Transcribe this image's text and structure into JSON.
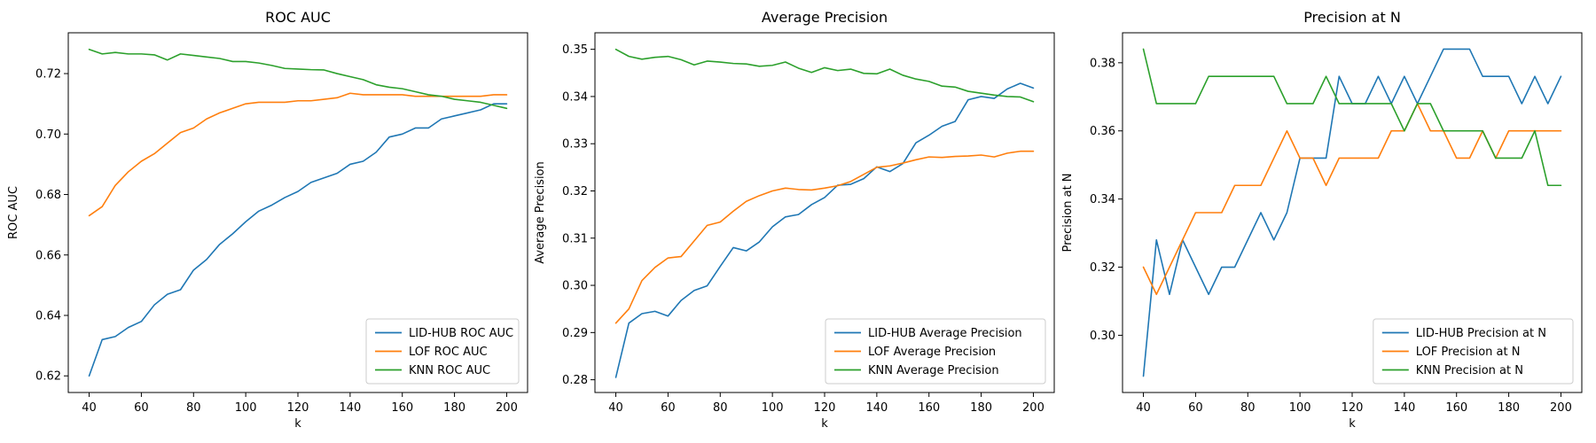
{
  "chart_data": [
    {
      "type": "line",
      "title": "ROC AUC",
      "xlabel": "k",
      "ylabel": "ROC AUC",
      "xlim": [
        32,
        208
      ],
      "ylim": [
        0.6145,
        0.7335
      ],
      "xticks": [
        40,
        60,
        80,
        100,
        120,
        140,
        160,
        180,
        200
      ],
      "yticks": [
        0.62,
        0.64,
        0.66,
        0.68,
        0.7,
        0.72
      ],
      "ytick_decimals": 2,
      "legend_position": "lower right",
      "grid": false,
      "x": [
        40,
        45,
        50,
        55,
        60,
        65,
        70,
        75,
        80,
        85,
        90,
        95,
        100,
        105,
        110,
        115,
        120,
        125,
        130,
        135,
        140,
        145,
        150,
        155,
        160,
        165,
        170,
        175,
        180,
        185,
        190,
        195,
        200
      ],
      "series": [
        {
          "name": "LID-HUB ROC AUC",
          "color": "#1f77b4",
          "values": [
            0.62,
            0.632,
            0.633,
            0.636,
            0.638,
            0.6435,
            0.647,
            0.6485,
            0.655,
            0.6585,
            0.6635,
            0.667,
            0.671,
            0.6745,
            0.6765,
            0.679,
            0.681,
            0.684,
            0.6855,
            0.687,
            0.69,
            0.691,
            0.694,
            0.699,
            0.7,
            0.702,
            0.702,
            0.705,
            0.706,
            0.707,
            0.708,
            0.71,
            0.71
          ]
        },
        {
          "name": "LOF ROC AUC",
          "color": "#ff7f0e",
          "values": [
            0.673,
            0.676,
            0.683,
            0.6875,
            0.691,
            0.6935,
            0.697,
            0.7005,
            0.702,
            0.705,
            0.707,
            0.7085,
            0.71,
            0.7105,
            0.7105,
            0.7105,
            0.711,
            0.711,
            0.7115,
            0.712,
            0.7135,
            0.713,
            0.713,
            0.713,
            0.713,
            0.7125,
            0.7125,
            0.7125,
            0.7125,
            0.7125,
            0.7125,
            0.713,
            0.713
          ]
        },
        {
          "name": "KNN ROC AUC",
          "color": "#2ca02c",
          "values": [
            0.728,
            0.7265,
            0.727,
            0.7265,
            0.7265,
            0.7262,
            0.7245,
            0.7265,
            0.726,
            0.7255,
            0.725,
            0.724,
            0.724,
            0.7235,
            0.7227,
            0.7217,
            0.7215,
            0.7213,
            0.7212,
            0.72,
            0.719,
            0.718,
            0.7163,
            0.7155,
            0.715,
            0.714,
            0.713,
            0.7125,
            0.7115,
            0.711,
            0.7105,
            0.7095,
            0.7085
          ]
        }
      ]
    },
    {
      "type": "line",
      "title": "Average Precision",
      "xlabel": "k",
      "ylabel": "Average Precision",
      "xlim": [
        32,
        208
      ],
      "ylim": [
        0.2773,
        0.3535
      ],
      "xticks": [
        40,
        60,
        80,
        100,
        120,
        140,
        160,
        180,
        200
      ],
      "yticks": [
        0.28,
        0.29,
        0.3,
        0.31,
        0.32,
        0.33,
        0.34,
        0.35
      ],
      "ytick_decimals": 2,
      "legend_position": "lower right",
      "grid": false,
      "x": [
        40,
        45,
        50,
        55,
        60,
        65,
        70,
        75,
        80,
        85,
        90,
        95,
        100,
        105,
        110,
        115,
        120,
        125,
        130,
        135,
        140,
        145,
        150,
        155,
        160,
        165,
        170,
        175,
        180,
        185,
        190,
        195,
        200
      ],
      "series": [
        {
          "name": "LID-HUB Average Precision",
          "color": "#1f77b4",
          "values": [
            0.2805,
            0.292,
            0.294,
            0.2945,
            0.2935,
            0.2968,
            0.2989,
            0.2999,
            0.304,
            0.308,
            0.3073,
            0.3092,
            0.3124,
            0.3145,
            0.315,
            0.3171,
            0.3186,
            0.3212,
            0.3214,
            0.3226,
            0.3251,
            0.3241,
            0.3258,
            0.3302,
            0.3318,
            0.3337,
            0.3347,
            0.3393,
            0.34,
            0.3396,
            0.3416,
            0.3428,
            0.3418
          ]
        },
        {
          "name": "LOF Average Precision",
          "color": "#ff7f0e",
          "values": [
            0.292,
            0.295,
            0.301,
            0.3038,
            0.3058,
            0.3061,
            0.3094,
            0.3127,
            0.3134,
            0.3157,
            0.3178,
            0.319,
            0.32,
            0.3206,
            0.3203,
            0.3202,
            0.3206,
            0.3211,
            0.322,
            0.3235,
            0.325,
            0.3253,
            0.3259,
            0.3266,
            0.3272,
            0.3271,
            0.3273,
            0.3274,
            0.3276,
            0.3272,
            0.328,
            0.3284,
            0.3284
          ]
        },
        {
          "name": "KNN Average Precision",
          "color": "#2ca02c",
          "values": [
            0.35,
            0.3485,
            0.3479,
            0.3483,
            0.3485,
            0.3478,
            0.3467,
            0.3475,
            0.3473,
            0.347,
            0.3469,
            0.3464,
            0.3466,
            0.3473,
            0.346,
            0.3451,
            0.3461,
            0.3455,
            0.3458,
            0.3449,
            0.3448,
            0.3458,
            0.3445,
            0.3437,
            0.3432,
            0.3422,
            0.342,
            0.3411,
            0.3407,
            0.3403,
            0.34,
            0.3399,
            0.3389
          ]
        }
      ]
    },
    {
      "type": "line",
      "title": "Precision at N",
      "xlabel": "k",
      "ylabel": "Precision at N",
      "xlim": [
        32,
        208
      ],
      "ylim": [
        0.2832,
        0.3888
      ],
      "xticks": [
        40,
        60,
        80,
        100,
        120,
        140,
        160,
        180,
        200
      ],
      "yticks": [
        0.3,
        0.32,
        0.34,
        0.36,
        0.38
      ],
      "ytick_decimals": 2,
      "legend_position": "lower right",
      "grid": false,
      "x": [
        40,
        45,
        50,
        55,
        60,
        65,
        70,
        75,
        80,
        85,
        90,
        95,
        100,
        105,
        110,
        115,
        120,
        125,
        130,
        135,
        140,
        145,
        150,
        155,
        160,
        165,
        170,
        175,
        180,
        185,
        190,
        195,
        200
      ],
      "series": [
        {
          "name": "LID-HUB Precision at N",
          "color": "#1f77b4",
          "values": [
            0.288,
            0.328,
            0.312,
            0.328,
            0.32,
            0.312,
            0.32,
            0.32,
            0.328,
            0.336,
            0.328,
            0.336,
            0.352,
            0.352,
            0.352,
            0.376,
            0.368,
            0.368,
            0.376,
            0.368,
            0.376,
            0.368,
            0.376,
            0.384,
            0.384,
            0.384,
            0.376,
            0.376,
            0.376,
            0.368,
            0.376,
            0.368,
            0.376
          ]
        },
        {
          "name": "LOF Precision at N",
          "color": "#ff7f0e",
          "values": [
            0.32,
            0.312,
            0.32,
            0.328,
            0.336,
            0.336,
            0.336,
            0.344,
            0.344,
            0.344,
            0.352,
            0.36,
            0.352,
            0.352,
            0.344,
            0.352,
            0.352,
            0.352,
            0.352,
            0.36,
            0.36,
            0.368,
            0.36,
            0.36,
            0.352,
            0.352,
            0.36,
            0.352,
            0.36,
            0.36,
            0.36,
            0.36,
            0.36
          ]
        },
        {
          "name": "KNN Precision at N",
          "color": "#2ca02c",
          "values": [
            0.384,
            0.368,
            0.368,
            0.368,
            0.368,
            0.376,
            0.376,
            0.376,
            0.376,
            0.376,
            0.376,
            0.368,
            0.368,
            0.368,
            0.376,
            0.368,
            0.368,
            0.368,
            0.368,
            0.368,
            0.36,
            0.368,
            0.368,
            0.36,
            0.36,
            0.36,
            0.36,
            0.352,
            0.352,
            0.352,
            0.36,
            0.344,
            0.344
          ]
        }
      ]
    }
  ]
}
